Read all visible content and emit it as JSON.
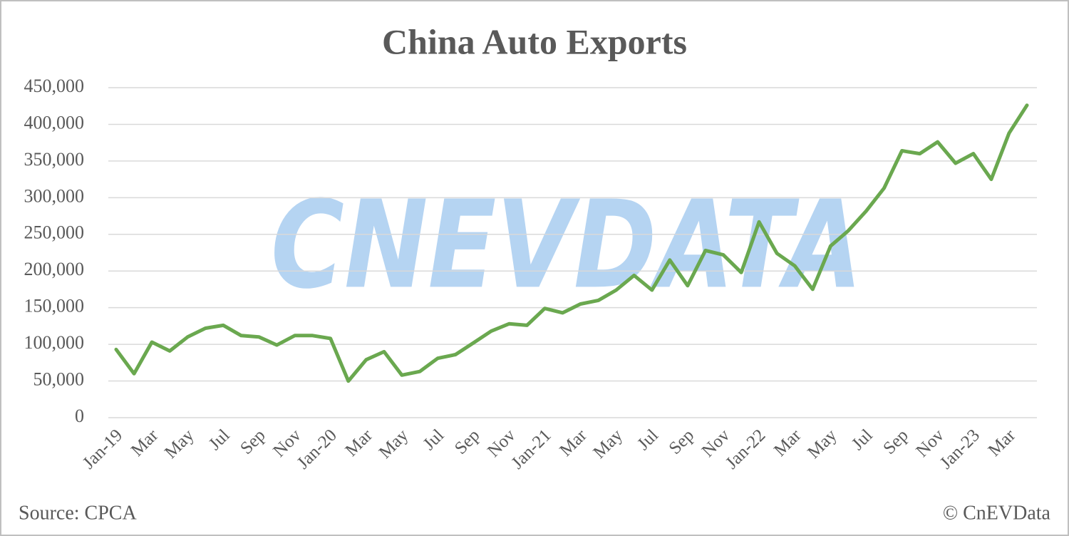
{
  "chart_data": {
    "type": "line",
    "title": "China Auto Exports",
    "categories": [
      "Jan-19",
      null,
      "Mar",
      null,
      "May",
      null,
      "Jul",
      null,
      "Sep",
      null,
      "Nov",
      null,
      "Jan-20",
      null,
      "Mar",
      null,
      "May",
      null,
      "Jul",
      null,
      "Sep",
      null,
      "Nov",
      null,
      "Jan-21",
      null,
      "Mar",
      null,
      "May",
      null,
      "Jul",
      null,
      "Sep",
      null,
      "Nov",
      null,
      "Jan-22",
      null,
      "Mar",
      null,
      "May",
      null,
      "Jul",
      null,
      "Sep",
      null,
      "Nov",
      null,
      "Jan-23",
      null,
      "Mar",
      null
    ],
    "values": [
      93000,
      60000,
      103000,
      91000,
      110000,
      122000,
      126000,
      112000,
      110000,
      99000,
      112000,
      112000,
      108000,
      50000,
      79000,
      90000,
      58000,
      63000,
      81000,
      86000,
      102000,
      118000,
      128000,
      126000,
      149000,
      143000,
      155000,
      160000,
      174000,
      194000,
      174000,
      215000,
      180000,
      228000,
      222000,
      198000,
      267000,
      224000,
      207000,
      175000,
      234000,
      255000,
      282000,
      313000,
      364000,
      360000,
      376000,
      347000,
      360000,
      325000,
      388000,
      426000
    ],
    "color": "#6aa84f",
    "ylim": [
      0,
      450000
    ],
    "yticks": [
      0,
      {
        "value": 50000,
        "label": "50,000"
      },
      {
        "value": 100000,
        "label": "100,000"
      },
      {
        "value": 150000,
        "label": "150,000"
      },
      {
        "value": 200000,
        "label": "200,000"
      },
      {
        "value": 250000,
        "label": "250,000"
      },
      {
        "value": 300000,
        "label": "300,000"
      },
      {
        "value": 350000,
        "label": "350,000"
      },
      {
        "value": 400000,
        "label": "400,000"
      },
      {
        "value": 450000,
        "label": "450,000"
      }
    ],
    "grid": true,
    "watermark": "CNEVDATA",
    "source": "Source: CPCA",
    "credit": "© CnEVData"
  }
}
